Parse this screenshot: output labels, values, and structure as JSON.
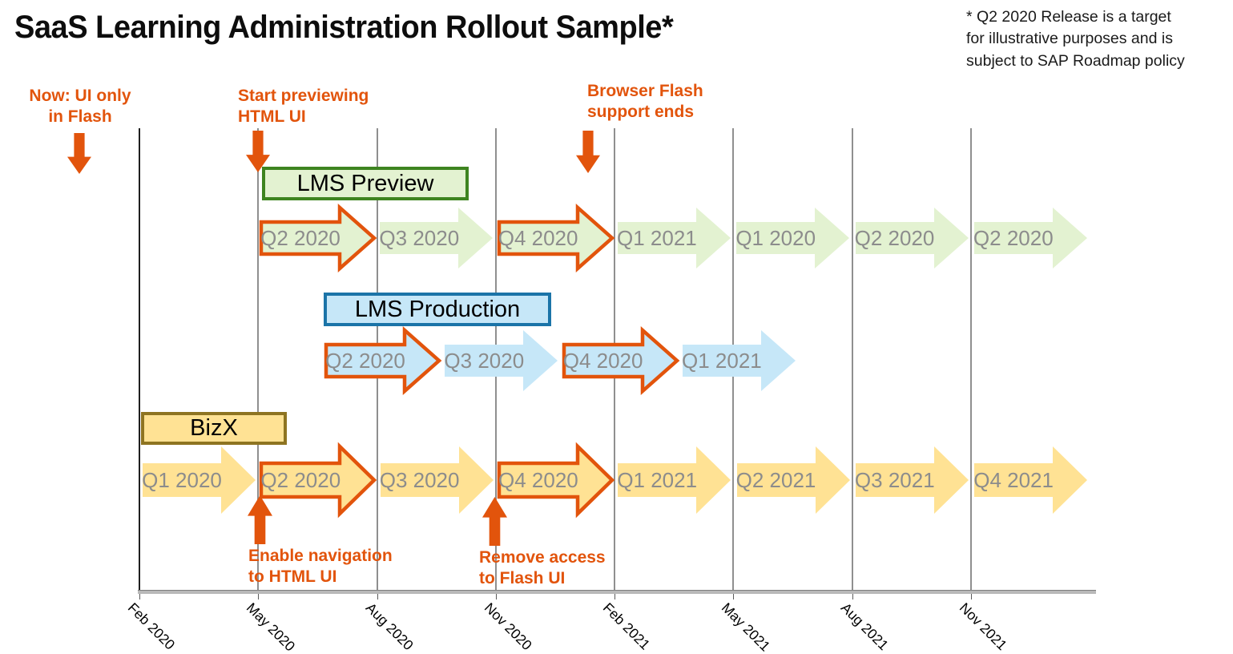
{
  "title": "SaaS Learning Administration Rollout Sample*",
  "footnote": [
    "* Q2 2020 Release is a target",
    "for illustrative purposes and is",
    "subject to SAP Roadmap policy"
  ],
  "annotations": {
    "now": [
      "Now: UI only",
      "in Flash"
    ],
    "start_preview": [
      "Start previewing",
      "HTML UI"
    ],
    "flash_end": [
      "Browser Flash",
      "support ends"
    ],
    "enable_nav": [
      "Enable navigation",
      "to HTML UI"
    ],
    "remove_access": [
      "Remove access",
      "to Flash UI"
    ]
  },
  "rows": [
    {
      "label": "LMS Preview",
      "theme": "green",
      "arrows": [
        {
          "label": "Q2 2020",
          "highlighted": true
        },
        {
          "label": "Q3 2020",
          "highlighted": false
        },
        {
          "label": "Q4 2020",
          "highlighted": true
        },
        {
          "label": "Q1 2021",
          "highlighted": false
        },
        {
          "label": "Q1 2020",
          "highlighted": false
        },
        {
          "label": "Q2 2020",
          "highlighted": false
        },
        {
          "label": "Q2 2020",
          "highlighted": false
        }
      ]
    },
    {
      "label": "LMS Production",
      "theme": "blue",
      "arrows": [
        {
          "label": "Q2 2020",
          "highlighted": true
        },
        {
          "label": "Q3 2020",
          "highlighted": false
        },
        {
          "label": "Q4 2020",
          "highlighted": true
        },
        {
          "label": "Q1 2021",
          "highlighted": false
        }
      ]
    },
    {
      "label": "BizX",
      "theme": "amber",
      "arrows": [
        {
          "label": "Q1 2020",
          "highlighted": false
        },
        {
          "label": "Q2 2020",
          "highlighted": true
        },
        {
          "label": "Q3 2020",
          "highlighted": false
        },
        {
          "label": "Q4 2020",
          "highlighted": true
        },
        {
          "label": "Q1 2021",
          "highlighted": false
        },
        {
          "label": "Q2 2021",
          "highlighted": false
        },
        {
          "label": "Q3 2021",
          "highlighted": false
        },
        {
          "label": "Q4 2021",
          "highlighted": false
        }
      ]
    }
  ],
  "axis": {
    "labels": [
      "Feb 2020",
      "May 2020",
      "Aug 2020",
      "Nov 2020",
      "Feb 2021",
      "May 2021",
      "Aug 2021",
      "Nov 2021"
    ]
  },
  "colors": {
    "accent_orange": "#E2540C",
    "green_fill": "#E3F2D1",
    "green_border": "#3E8420",
    "blue_fill": "#C6E7F8",
    "blue_border": "#1B74A8",
    "amber_fill": "#FFE294",
    "amber_border": "#8E7421",
    "arrow_text": "#8C8C8C"
  }
}
